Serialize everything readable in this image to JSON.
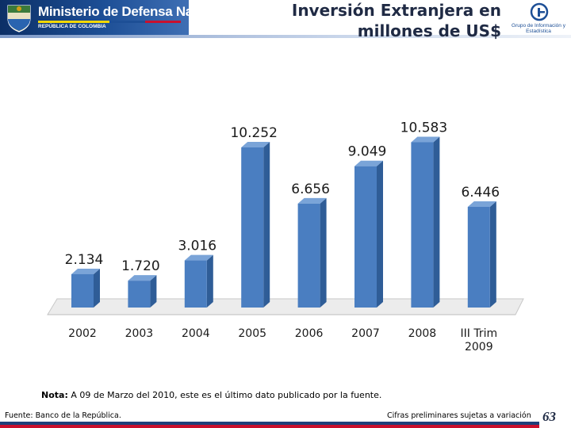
{
  "header": {
    "ministry_name": "Ministerio de Defensa Nacional",
    "republic": "REPÚBLICA DE COLOMBIA",
    "group_name": "Grupo de Información y Estadística"
  },
  "slide": {
    "title_line1": "Inversión Extranjera en",
    "title_line2": "millones de US$"
  },
  "colors": {
    "bar_front": "#4a7ec1",
    "bar_side": "#2f5d97",
    "bar_top": "#7aa4d8",
    "floor": "#ececec",
    "header_blue": "#1d4f96"
  },
  "chart_data": {
    "type": "bar",
    "categories": [
      "2002",
      "2003",
      "2004",
      "2005",
      "2006",
      "2007",
      "2008",
      "III Trim 2009"
    ],
    "values": [
      2134,
      1720,
      3016,
      10252,
      6656,
      9049,
      10583,
      6446
    ],
    "value_labels": [
      "2.134",
      "1.720",
      "3.016",
      "10.252",
      "6.656",
      "9.049",
      "10.583",
      "6.446"
    ],
    "title": "",
    "xlabel": "",
    "ylabel": "",
    "ylim": [
      0,
      11000
    ],
    "grid": false,
    "legend": "none"
  },
  "footer": {
    "note_label": "Nota:",
    "note_text": " A 09 de Marzo del 2010, este es el último dato publicado por la fuente.",
    "source": "Fuente: Banco de la República.",
    "preliminary": "Cifras preliminares sujetas a variación",
    "page_number": "63"
  }
}
